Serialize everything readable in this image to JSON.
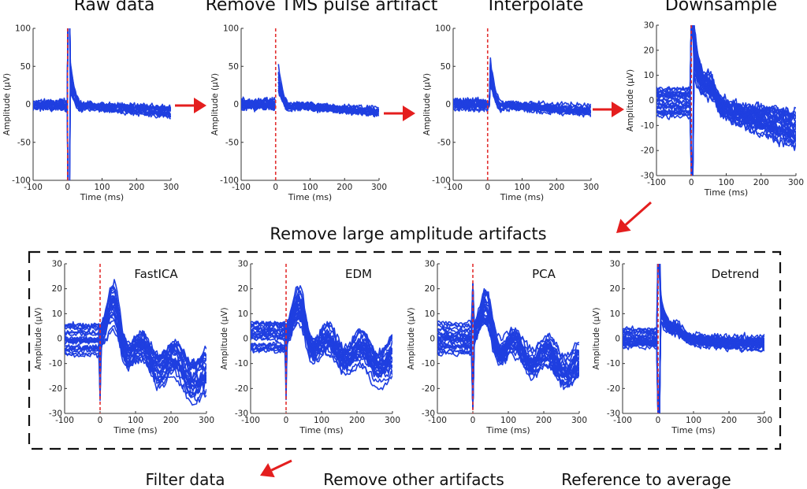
{
  "pipeline": {
    "steps": [
      {
        "title": "Raw data",
        "variant": "raw"
      },
      {
        "title": "Remove TMS pulse artifact",
        "variant": "removed"
      },
      {
        "title": "Interpolate",
        "variant": "interp"
      },
      {
        "title": "Downsample",
        "variant": "down"
      }
    ],
    "section_title": "Remove large amplitude artifacts",
    "methods": [
      {
        "title": "FastICA",
        "variant": "fastica"
      },
      {
        "title": "EDM",
        "variant": "edm"
      },
      {
        "title": "PCA",
        "variant": "pca"
      },
      {
        "title": "Detrend",
        "variant": "detrend"
      }
    ],
    "bottom_labels": [
      "Filter data",
      "Remove other artifacts",
      "Reference to average"
    ]
  },
  "axes": {
    "xlabel": "Time (ms)",
    "ylabel": "Amplitude (μV)",
    "xlim": [
      -100,
      300
    ],
    "xticks": [
      -100,
      0,
      100,
      200,
      300
    ],
    "top_ylim": [
      -100,
      100
    ],
    "top_yticks": [
      -100,
      -50,
      0,
      50,
      100
    ],
    "low_ylim": [
      -30,
      30
    ],
    "low_yticks": [
      -30,
      -20,
      -10,
      0,
      10,
      20,
      30
    ]
  },
  "colors": {
    "trace": "#1f3fe0",
    "onset_marker": "#e23030",
    "arrow": "#e41e1e",
    "frame": "#111111"
  },
  "chart_data": [
    {
      "type": "line",
      "title": "Raw data",
      "xlabel": "Time (ms)",
      "ylabel": "Amplitude (μV)",
      "xlim": [
        -100,
        300
      ],
      "ylim": [
        -100,
        100
      ],
      "series": [
        {
          "name": "EEG channels (overlaid)",
          "values": "multi-channel TMS-EEG traces"
        }
      ]
    },
    {
      "type": "line",
      "title": "Remove TMS pulse artifact",
      "xlabel": "Time (ms)",
      "ylabel": "Amplitude (μV)",
      "xlim": [
        -100,
        300
      ],
      "ylim": [
        -100,
        100
      ]
    },
    {
      "type": "line",
      "title": "Interpolate",
      "xlabel": "Time (ms)",
      "ylabel": "Amplitude (μV)",
      "xlim": [
        -100,
        300
      ],
      "ylim": [
        -100,
        100
      ]
    },
    {
      "type": "line",
      "title": "Downsample",
      "xlabel": "Time (ms)",
      "ylabel": "Amplitude (μV)",
      "xlim": [
        -100,
        300
      ],
      "ylim": [
        -30,
        30
      ]
    },
    {
      "type": "line",
      "title": "FastICA",
      "xlabel": "Time (ms)",
      "ylabel": "Amplitude (μV)",
      "xlim": [
        -100,
        300
      ],
      "ylim": [
        -30,
        30
      ]
    },
    {
      "type": "line",
      "title": "EDM",
      "xlabel": "Time (ms)",
      "ylabel": "Amplitude (μV)",
      "xlim": [
        -100,
        300
      ],
      "ylim": [
        -30,
        30
      ]
    },
    {
      "type": "line",
      "title": "PCA",
      "xlabel": "Time (ms)",
      "ylabel": "Amplitude (μV)",
      "xlim": [
        -100,
        300
      ],
      "ylim": [
        -30,
        30
      ]
    },
    {
      "type": "line",
      "title": "Detrend",
      "xlabel": "Time (ms)",
      "ylabel": "Amplitude (μV)",
      "xlim": [
        -100,
        300
      ],
      "ylim": [
        -30,
        30
      ]
    }
  ]
}
